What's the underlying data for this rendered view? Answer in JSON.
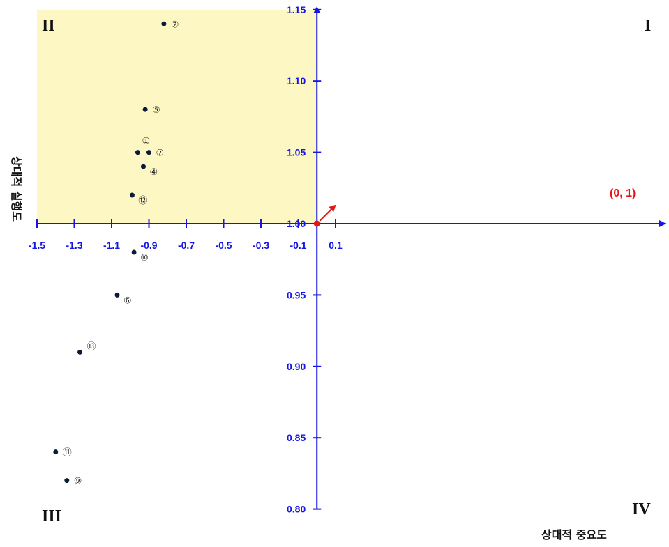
{
  "chart_data": {
    "type": "scatter",
    "title": "",
    "xlabel": "상대적 중요도",
    "ylabel": "상대적 실행도",
    "xlim": [
      -1.5,
      0.3
    ],
    "ylim": [
      0.8,
      1.15
    ],
    "x_ticks": [
      "-1.5",
      "-1.3",
      "-1.1",
      "-0.9",
      "-0.7",
      "-0.5",
      "-0.3",
      "-0.1",
      "0.1"
    ],
    "y_ticks": [
      "0.80",
      "0.85",
      "0.90",
      "0.95",
      "1.00",
      "1.05",
      "1.10",
      "1.15"
    ],
    "highlight_region": {
      "x": [
        -1.5,
        0.0
      ],
      "y": [
        1.0,
        1.15
      ],
      "color": "#fdf8c3"
    },
    "quadrants": {
      "I": "I",
      "II": "II",
      "III": "III",
      "IV": "IV"
    },
    "origin": {
      "x": 0,
      "y": 1,
      "label": "(0, 1)",
      "color": "#e81414"
    },
    "point_color": "#0a1a3a",
    "axis_color": "#1515e6",
    "points": [
      {
        "label": "①",
        "x": -0.96,
        "y": 1.05
      },
      {
        "label": "②",
        "x": -0.82,
        "y": 1.14
      },
      {
        "label": "④",
        "x": -0.93,
        "y": 1.04
      },
      {
        "label": "⑤",
        "x": -0.92,
        "y": 1.08
      },
      {
        "label": "⑥",
        "x": -1.07,
        "y": 0.95
      },
      {
        "label": "⑦",
        "x": -0.9,
        "y": 1.05
      },
      {
        "label": "⑨",
        "x": -1.34,
        "y": 0.82
      },
      {
        "label": "⑩",
        "x": -0.98,
        "y": 0.98
      },
      {
        "label": "⑪",
        "x": -1.4,
        "y": 0.84
      },
      {
        "label": "⑫",
        "x": -0.99,
        "y": 1.02
      },
      {
        "label": "⑬",
        "x": -1.27,
        "y": 0.91
      }
    ]
  }
}
